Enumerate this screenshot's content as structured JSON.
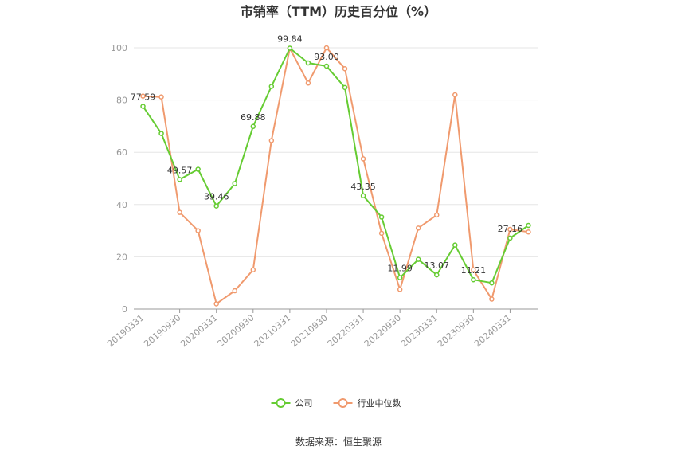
{
  "chart_data": {
    "type": "line",
    "title": "市销率（TTM）历史百分位（%）",
    "source": "数据来源：恒生聚源",
    "xlabel": "",
    "ylabel": "",
    "ylim": [
      0,
      100
    ],
    "yticks": [
      0,
      20,
      40,
      60,
      80,
      100
    ],
    "x": [
      "20190331",
      "20190630",
      "20190930",
      "20191231",
      "20200331",
      "20200630",
      "20200930",
      "20201231",
      "20210331",
      "20210630",
      "20210930",
      "20211231",
      "20220331",
      "20220630",
      "20220930",
      "20221231",
      "20230331",
      "20230630",
      "20230930",
      "20231231",
      "20240331",
      "20240630"
    ],
    "x_tick_labels": [
      "20190331",
      "20190930",
      "20200331",
      "20200930",
      "20210331",
      "20210930",
      "20220331",
      "20220930",
      "20230331",
      "20230930",
      "20240331"
    ],
    "grid": true,
    "legend_position": "bottom",
    "series": [
      {
        "name": "公司",
        "color": "#66cc33",
        "values": [
          77.59,
          67.2,
          49.57,
          53.5,
          39.46,
          48.0,
          69.88,
          85.2,
          99.84,
          94.2,
          93.0,
          84.8,
          43.35,
          35.2,
          11.99,
          19.0,
          13.07,
          24.5,
          11.21,
          10.0,
          27.16,
          32.0
        ],
        "labels": [
          {
            "i": 0,
            "text": "77.59"
          },
          {
            "i": 2,
            "text": "49.57"
          },
          {
            "i": 4,
            "text": "39.46"
          },
          {
            "i": 6,
            "text": "69.88"
          },
          {
            "i": 8,
            "text": "99.84"
          },
          {
            "i": 10,
            "text": "93.00"
          },
          {
            "i": 12,
            "text": "43.35"
          },
          {
            "i": 14,
            "text": "11.99"
          },
          {
            "i": 16,
            "text": "13.07"
          },
          {
            "i": 18,
            "text": "11.21"
          },
          {
            "i": 20,
            "text": "27.16"
          }
        ]
      },
      {
        "name": "行业中位数",
        "color": "#f09a6e",
        "values": [
          81.5,
          81.2,
          37.0,
          30.0,
          2.0,
          7.0,
          15.0,
          64.5,
          99.8,
          86.5,
          100.0,
          92.0,
          57.5,
          29.0,
          7.5,
          31.0,
          36.0,
          82.0,
          15.0,
          3.8,
          30.5,
          29.5
        ]
      }
    ]
  }
}
